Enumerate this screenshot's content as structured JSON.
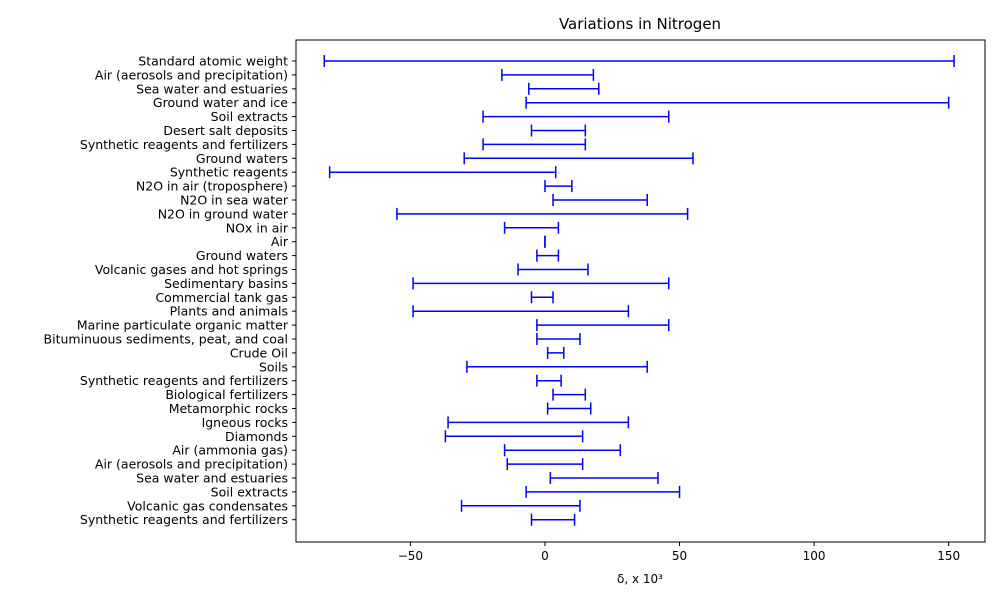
{
  "chart_data": {
    "type": "range",
    "title": "Variations  in Nitrogen",
    "xlabel": "δ, x 10³",
    "ylabel": "",
    "xlim": [
      -92.5,
      163.5
    ],
    "xticks": [
      -50,
      0,
      50,
      100,
      150
    ],
    "xtick_labels": [
      "−50",
      "0",
      "50",
      "100",
      "150"
    ],
    "grid": false,
    "series_color": "#0000ff",
    "rows": [
      {
        "label": "Standard atomic weight",
        "min": -82,
        "max": 152
      },
      {
        "label": "Air (aerosols and precipitation) ",
        "min": -16,
        "max": 18
      },
      {
        "label": "Sea water and estuaries ",
        "min": -6,
        "max": 20
      },
      {
        "label": "Ground water and ice ",
        "min": -7,
        "max": 150
      },
      {
        "label": "Soil extracts",
        "min": -23,
        "max": 46
      },
      {
        "label": "Desert salt deposits",
        "min": -5,
        "max": 15
      },
      {
        "label": "Synthetic reagents and fertilizers",
        "min": -23,
        "max": 15
      },
      {
        "label": "Ground waters",
        "min": -30,
        "max": 55
      },
      {
        "label": "Synthetic reagents ",
        "min": -80,
        "max": 4
      },
      {
        "label": "N2O in air (troposphere)",
        "min": 0,
        "max": 10
      },
      {
        "label": "N2O in sea water",
        "min": 3,
        "max": 38
      },
      {
        "label": "N2O in ground water",
        "min": -55,
        "max": 53
      },
      {
        "label": "NOx in air",
        "min": -15,
        "max": 5
      },
      {
        "label": "Air",
        "min": 0,
        "max": 0
      },
      {
        "label": "Ground waters",
        "min": -3,
        "max": 5
      },
      {
        "label": "Volcanic gases and hot springs",
        "min": -10,
        "max": 16
      },
      {
        "label": "Sedimentary basins",
        "min": -49,
        "max": 46
      },
      {
        "label": "Commercial tank gas",
        "min": -5,
        "max": 3
      },
      {
        "label": "Plants and animals",
        "min": -49,
        "max": 31
      },
      {
        "label": "Marine particulate organic matter",
        "min": -3,
        "max": 46
      },
      {
        "label": "Bituminuous sediments, peat, and coal",
        "min": -3,
        "max": 13
      },
      {
        "label": "Crude Oil ",
        "min": 1,
        "max": 7
      },
      {
        "label": "Soils",
        "min": -29,
        "max": 38
      },
      {
        "label": "Synthetic reagents and fertilizers",
        "min": -3,
        "max": 6
      },
      {
        "label": "Biological fertilizers",
        "min": 3,
        "max": 15
      },
      {
        "label": "Metamorphic rocks",
        "min": 1,
        "max": 17
      },
      {
        "label": "Igneous rocks",
        "min": -36,
        "max": 31
      },
      {
        "label": "Diamonds",
        "min": -37,
        "max": 14
      },
      {
        "label": "Air (ammonia gas)",
        "min": -15,
        "max": 28
      },
      {
        "label": "Air (aerosols and precipitation)",
        "min": -14,
        "max": 14
      },
      {
        "label": "Sea water and estuaries ",
        "min": 2,
        "max": 42
      },
      {
        "label": "Soil extracts  ",
        "min": -7,
        "max": 50
      },
      {
        "label": "Volcanic gas condensates ",
        "min": -31,
        "max": 13
      },
      {
        "label": "Synthetic reagents and fertilizers  ",
        "min": -5,
        "max": 11
      }
    ]
  }
}
